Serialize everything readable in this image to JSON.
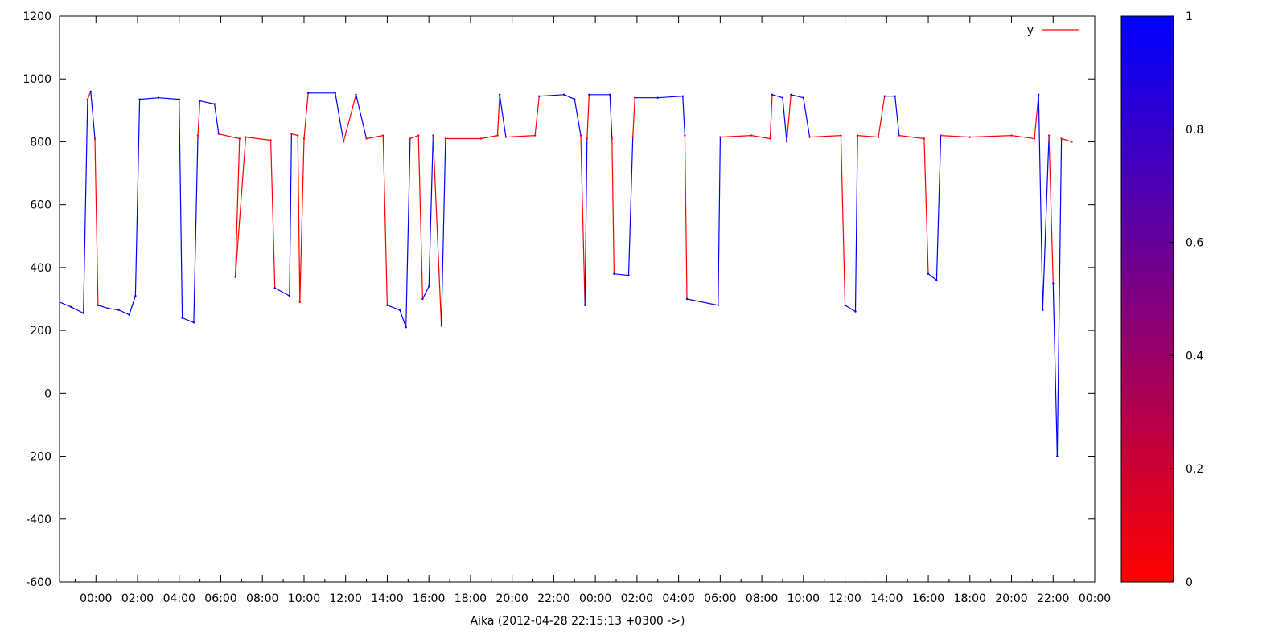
{
  "chart_data": {
    "type": "line",
    "title": "",
    "xlabel": "Aika (2012-04-28 22:15:13 +0300 ->)",
    "ylabel": "",
    "ylim": [
      -600,
      1200
    ],
    "yticks": [
      1200,
      1000,
      800,
      600,
      400,
      200,
      0,
      -200,
      -400,
      -600
    ],
    "xticks": [
      "00:00",
      "02:00",
      "04:00",
      "06:00",
      "08:00",
      "10:00",
      "12:00",
      "14:00",
      "16:00",
      "18:00",
      "20:00",
      "22:00",
      "00:00",
      "02:00",
      "04:00",
      "06:00",
      "08:00",
      "10:00",
      "12:00",
      "14:00",
      "16:00",
      "18:00",
      "20:00",
      "22:00",
      "00:00"
    ],
    "xlim_hours": [
      -1.75,
      48.0
    ],
    "legend": {
      "label": "y",
      "color": "#ff0000",
      "placement": "top-right"
    },
    "colorbar": {
      "min": 0,
      "max": 1,
      "ticks": [
        "1",
        "0.8",
        "0.6",
        "0.4",
        "0.2",
        "0"
      ],
      "low_color": "#ff0000",
      "high_color": "#0000ff"
    },
    "series": [
      {
        "name": "y",
        "points": [
          [
            -1.75,
            290,
            1
          ],
          [
            -1.2,
            275,
            1
          ],
          [
            -0.6,
            255,
            1
          ],
          [
            -0.4,
            935,
            0
          ],
          [
            -0.25,
            960,
            1
          ],
          [
            -0.05,
            810,
            0
          ],
          [
            0.1,
            280,
            1
          ],
          [
            0.6,
            270,
            1
          ],
          [
            1.1,
            265,
            1
          ],
          [
            1.6,
            250,
            1
          ],
          [
            1.9,
            310,
            1
          ],
          [
            2.1,
            935,
            1
          ],
          [
            3.0,
            940,
            1
          ],
          [
            4.0,
            935,
            1
          ],
          [
            4.15,
            240,
            1
          ],
          [
            4.7,
            225,
            1
          ],
          [
            4.9,
            820,
            0
          ],
          [
            5.0,
            930,
            1
          ],
          [
            5.7,
            920,
            1
          ],
          [
            5.9,
            825,
            0
          ],
          [
            6.9,
            810,
            0
          ],
          [
            6.7,
            370,
            0
          ],
          [
            7.2,
            815,
            0
          ],
          [
            8.4,
            805,
            0
          ],
          [
            8.6,
            335,
            1
          ],
          [
            9.3,
            310,
            1
          ],
          [
            9.4,
            825,
            0
          ],
          [
            9.7,
            820,
            0
          ],
          [
            9.8,
            290,
            0
          ],
          [
            10.0,
            810,
            0
          ],
          [
            10.2,
            955,
            1
          ],
          [
            11.5,
            955,
            1
          ],
          [
            11.9,
            800,
            0
          ],
          [
            12.5,
            950,
            1
          ],
          [
            13.0,
            810,
            0
          ],
          [
            13.8,
            820,
            0
          ],
          [
            14.0,
            280,
            1
          ],
          [
            14.6,
            265,
            1
          ],
          [
            14.9,
            210,
            1
          ],
          [
            15.1,
            810,
            0
          ],
          [
            15.5,
            820,
            0
          ],
          [
            15.7,
            300,
            1
          ],
          [
            16.0,
            340,
            1
          ],
          [
            16.2,
            820,
            0
          ],
          [
            16.6,
            215,
            1
          ],
          [
            16.8,
            810,
            0
          ],
          [
            18.5,
            810,
            0
          ],
          [
            19.3,
            820,
            0
          ],
          [
            19.4,
            950,
            1
          ],
          [
            19.7,
            815,
            0
          ],
          [
            21.1,
            820,
            0
          ],
          [
            21.3,
            945,
            1
          ],
          [
            22.5,
            950,
            1
          ],
          [
            23.0,
            935,
            1
          ],
          [
            23.3,
            820,
            0
          ],
          [
            23.5,
            280,
            1
          ],
          [
            23.6,
            810,
            0
          ],
          [
            23.7,
            950,
            1
          ],
          [
            24.7,
            950,
            1
          ],
          [
            24.8,
            810,
            0
          ],
          [
            24.9,
            380,
            1
          ],
          [
            25.6,
            375,
            1
          ],
          [
            25.8,
            815,
            0
          ],
          [
            25.9,
            940,
            1
          ],
          [
            27.0,
            940,
            1
          ],
          [
            28.2,
            945,
            1
          ],
          [
            28.3,
            820,
            0
          ],
          [
            28.4,
            300,
            1
          ],
          [
            29.9,
            280,
            1
          ],
          [
            30.0,
            815,
            0
          ],
          [
            31.5,
            820,
            0
          ],
          [
            32.4,
            810,
            0
          ],
          [
            32.5,
            950,
            1
          ],
          [
            33.0,
            940,
            1
          ],
          [
            33.2,
            800,
            0
          ],
          [
            33.4,
            950,
            1
          ],
          [
            34.0,
            940,
            1
          ],
          [
            34.3,
            815,
            0
          ],
          [
            35.8,
            820,
            0
          ],
          [
            36.0,
            280,
            1
          ],
          [
            36.5,
            260,
            1
          ],
          [
            36.6,
            820,
            0
          ],
          [
            37.6,
            815,
            0
          ],
          [
            37.9,
            945,
            1
          ],
          [
            38.4,
            945,
            1
          ],
          [
            38.6,
            820,
            0
          ],
          [
            39.8,
            810,
            0
          ],
          [
            40.0,
            380,
            1
          ],
          [
            40.4,
            360,
            1
          ],
          [
            40.6,
            820,
            0
          ],
          [
            42.0,
            815,
            0
          ],
          [
            44.0,
            820,
            0
          ],
          [
            45.1,
            810,
            0
          ],
          [
            45.3,
            950,
            1
          ],
          [
            45.5,
            265,
            1
          ],
          [
            45.8,
            820,
            0
          ],
          [
            46.0,
            350,
            1
          ],
          [
            46.2,
            -200,
            1
          ],
          [
            46.4,
            810,
            0
          ],
          [
            46.9,
            800,
            0
          ]
        ]
      }
    ]
  }
}
